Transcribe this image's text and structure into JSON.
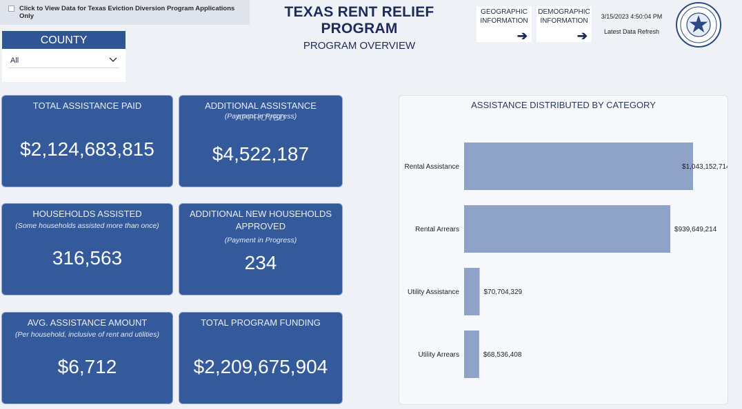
{
  "diversion_toggle": {
    "label": "Click to View Data for Texas Eviction Diversion Program Applications Only"
  },
  "header": {
    "title": "TEXAS RENT RELIEF PROGRAM",
    "subtitle": "PROGRAM OVERVIEW"
  },
  "nav": {
    "geographic": {
      "line1": "GEOGRAPHIC",
      "line2": "INFORMATION",
      "icon": "arrow-right-icon"
    },
    "demographic": {
      "line1": "DEMOGRAPHIC",
      "line2": "INFORMATION",
      "icon": "arrow-right-icon"
    }
  },
  "refresh": {
    "timestamp": "3/15/2023 4:50:04 PM",
    "label": "Latest Data Refresh"
  },
  "county": {
    "label": "COUNTY",
    "value": "All"
  },
  "cards": {
    "total_paid": {
      "label": "TOTAL ASSISTANCE PAID",
      "value": "$2,124,683,815"
    },
    "additional": {
      "label": "ADDITIONAL ASSISTANCE",
      "overlap": "APPROVED",
      "note": "(Payment in Progress)",
      "value": "$4,522,187"
    },
    "households": {
      "label": "HOUSEHOLDS ASSISTED",
      "note": "(Some households assisted more than once)",
      "value": "316,563"
    },
    "new_households": {
      "label1": "ADDITIONAL NEW HOUSEHOLDS",
      "label2": "APPROVED",
      "note": "(Payment in Progress)",
      "value": "234"
    },
    "avg": {
      "label": "AVG. ASSISTANCE AMOUNT",
      "note": "(Per household, inclusive of rent and utilities)",
      "value": "$6,712"
    },
    "funding": {
      "label": "TOTAL PROGRAM FUNDING",
      "value": "$2,209,675,904"
    }
  },
  "colors": {
    "card": "#345a9c",
    "bar": "#8fa3c8",
    "accent": "#1f2a5c"
  },
  "chart_data": {
    "type": "bar",
    "orientation": "horizontal",
    "title": "ASSISTANCE DISTRIBUTED BY CATEGORY",
    "categories": [
      "Rental Assistance",
      "Rental Arrears",
      "Utility Assistance",
      "Utility Arrears"
    ],
    "values": [
      1043152714,
      939649214,
      70704329,
      68536408
    ],
    "labels": [
      "$1,043,152,714",
      "$939,649,214",
      "$70,704,329",
      "$68,536,408"
    ],
    "xlim": [
      0,
      1043152714
    ]
  }
}
